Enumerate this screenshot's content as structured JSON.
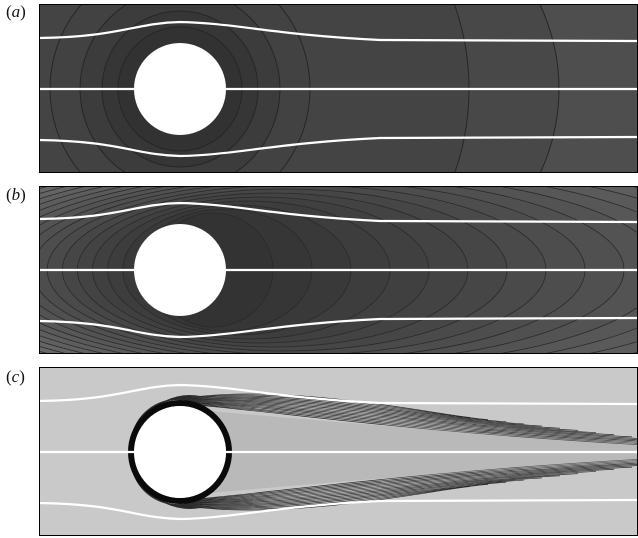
{
  "panels": [
    {
      "label_open": "(",
      "label_letter": "a",
      "label_close": ")",
      "style": "uniform-field",
      "fill": "#4a4a4a",
      "contour_stroke": "#262626"
    },
    {
      "label_open": "(",
      "label_letter": "b",
      "label_close": ")",
      "style": "elliptic-gradient",
      "fill": "#6a6a6a",
      "contour_stroke": "#2a2a2a"
    },
    {
      "label_open": "(",
      "label_letter": "c",
      "label_close": ")",
      "style": "wake-layer",
      "fill": "#c9c9c9",
      "contour_stroke": "#2b2b2b"
    }
  ],
  "colors": {
    "streamline": "#ffffff",
    "obstacle": "#ffffff",
    "border": "#000000"
  },
  "icons": [
    "cylinder-obstacle",
    "streamline",
    "contour-line"
  ]
}
